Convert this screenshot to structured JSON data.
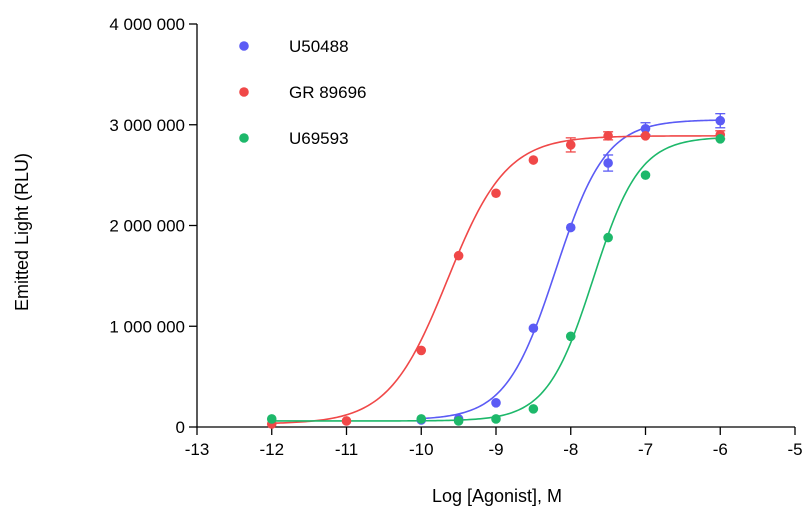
{
  "chart_data": {
    "type": "scatter",
    "xlabel": "Log [Agonist], M",
    "ylabel": "Emitted Light (RLU)",
    "xlim": [
      -13,
      -5
    ],
    "ylim": [
      0,
      4000000
    ],
    "x_ticks": [
      -13,
      -12,
      -11,
      -10,
      -9,
      -8,
      -7,
      -6,
      -5
    ],
    "x_tick_labels": [
      "-13",
      "-12",
      "-11",
      "-10",
      "-9",
      "-8",
      "-7",
      "-6",
      "-5"
    ],
    "y_ticks": [
      0,
      1000000,
      2000000,
      3000000,
      4000000
    ],
    "y_tick_labels": [
      "0",
      "1 000 000",
      "2 000 000",
      "3 000 000",
      "4 000 000"
    ],
    "grid": false,
    "legend_position": "top-left",
    "series": [
      {
        "name": "U50488",
        "color": "#5b5bf5",
        "points": [
          {
            "x": -10,
            "y": 70000,
            "err": 0
          },
          {
            "x": -9.5,
            "y": 80000,
            "err": 0
          },
          {
            "x": -9,
            "y": 240000,
            "err": 0
          },
          {
            "x": -8.5,
            "y": 980000,
            "err": 0
          },
          {
            "x": -8,
            "y": 1980000,
            "err": 0
          },
          {
            "x": -7.5,
            "y": 2620000,
            "err": 80000
          },
          {
            "x": -7,
            "y": 2960000,
            "err": 60000
          },
          {
            "x": -6,
            "y": 3040000,
            "err": 70000
          }
        ],
        "fit": {
          "bottom": 70000,
          "top": 3050000,
          "log_ec50": -8.2,
          "hill": 1.3
        }
      },
      {
        "name": "GR 89696",
        "color": "#f04848",
        "points": [
          {
            "x": -12,
            "y": 30000,
            "err": 0
          },
          {
            "x": -11,
            "y": 60000,
            "err": 0
          },
          {
            "x": -10,
            "y": 760000,
            "err": 0
          },
          {
            "x": -9.5,
            "y": 1700000,
            "err": 0
          },
          {
            "x": -9,
            "y": 2320000,
            "err": 0
          },
          {
            "x": -8.5,
            "y": 2650000,
            "err": 0
          },
          {
            "x": -8,
            "y": 2800000,
            "err": 70000
          },
          {
            "x": -7.5,
            "y": 2890000,
            "err": 40000
          },
          {
            "x": -7,
            "y": 2890000,
            "err": 0
          },
          {
            "x": -6,
            "y": 2900000,
            "err": 40000
          }
        ],
        "fit": {
          "bottom": 30000,
          "top": 2890000,
          "log_ec50": -9.65,
          "hill": 1.1
        }
      },
      {
        "name": "U69593",
        "color": "#1db86a",
        "points": [
          {
            "x": -12,
            "y": 80000,
            "err": 0
          },
          {
            "x": -10,
            "y": 80000,
            "err": 0
          },
          {
            "x": -9.5,
            "y": 60000,
            "err": 0
          },
          {
            "x": -9,
            "y": 80000,
            "err": 0
          },
          {
            "x": -8.5,
            "y": 180000,
            "err": 0
          },
          {
            "x": -8,
            "y": 900000,
            "err": 0
          },
          {
            "x": -7.5,
            "y": 1880000,
            "err": 0
          },
          {
            "x": -7,
            "y": 2500000,
            "err": 0
          },
          {
            "x": -6,
            "y": 2860000,
            "err": 0
          }
        ],
        "fit": {
          "bottom": 60000,
          "top": 2880000,
          "log_ec50": -7.7,
          "hill": 1.4
        }
      }
    ]
  }
}
